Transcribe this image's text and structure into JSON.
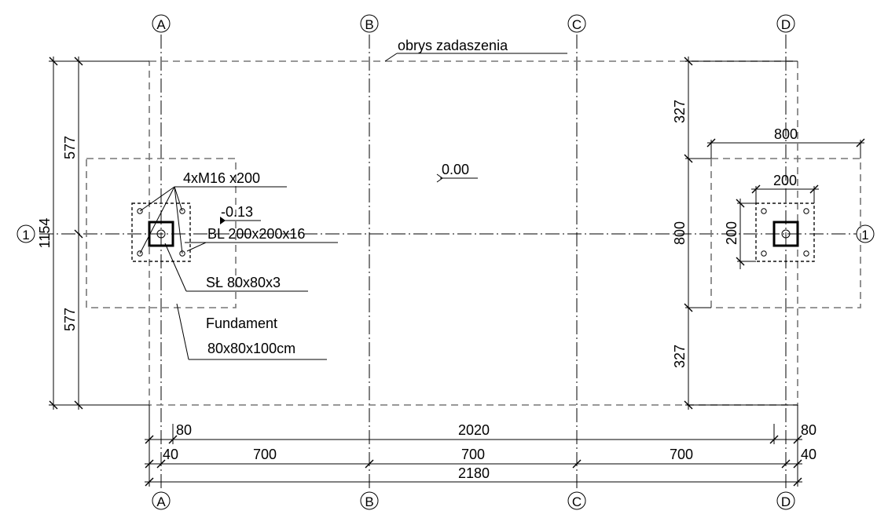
{
  "axes": {
    "columns": [
      "A",
      "B",
      "C",
      "D"
    ],
    "row_left": "1",
    "row_right": "1"
  },
  "annotations": {
    "outline": "obrys zadaszenia",
    "level_top": "0.00",
    "level_slab": "-0.13",
    "bolts": "4xM16 x200",
    "plate": "BL 200x200x16",
    "column": "SŁ 80x80x3",
    "foundation_1": "Fundament",
    "foundation_2": "80x80x100cm"
  },
  "dimensions": {
    "left_upper": "577",
    "left_total": "1154",
    "left_lower": "577",
    "right_top": "327",
    "right_mid": "800",
    "right_bottom": "327",
    "foot_width": "800",
    "plate_width": "200",
    "plate_height": "200",
    "b1_left": "80",
    "b1_mid": "2020",
    "b1_right": "80",
    "b2_left": "40",
    "b2_s1": "700",
    "b2_s2": "700",
    "b2_s3": "700",
    "b2_right": "40",
    "b3_total": "2180"
  },
  "colors": {
    "line": "#000000",
    "hidden_line": "#777777",
    "background": "#ffffff"
  }
}
